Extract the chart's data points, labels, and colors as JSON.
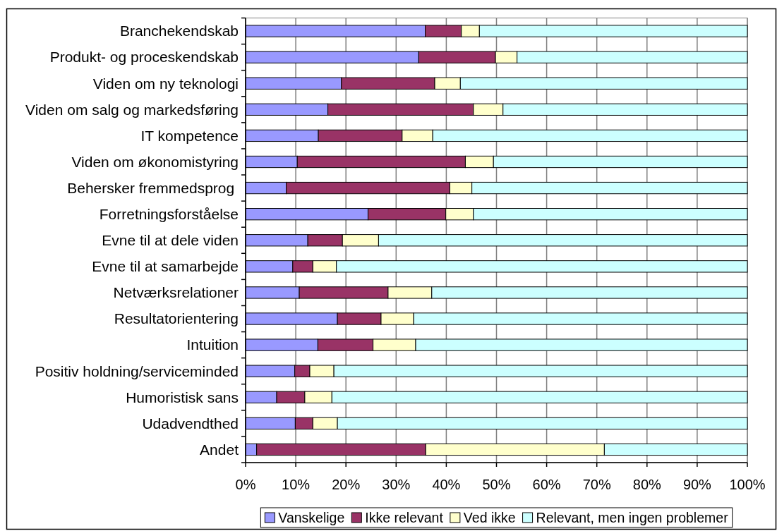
{
  "chart_data": {
    "type": "bar",
    "orientation": "horizontal",
    "stacked": true,
    "categories": [
      "Branchekendskab",
      "Produkt- og proceskendskab",
      "Viden om ny teknologi",
      "Viden om salg og markedsføring",
      "IT kompetence",
      "Viden om økonomistyring",
      "Behersker fremmedsprog ",
      "Forretningsforståelse",
      "Evne til at dele viden",
      "Evne til at samarbejde",
      "Netværksrelationer",
      "Resultatorientering",
      "Intuition",
      "Positiv holdning/serviceminded",
      "Humoristisk sans",
      "Udadvendthed",
      "Andet"
    ],
    "series": [
      {
        "name": "Vanskelige",
        "color": "#9999ff",
        "values": [
          35.8,
          34.5,
          19.1,
          16.4,
          14.5,
          10.3,
          8.1,
          24.4,
          12.4,
          9.4,
          10.7,
          18.3,
          14.4,
          9.8,
          6.2,
          9.9,
          2.2
        ]
      },
      {
        "name": "Ikke relevant",
        "color": "#993366",
        "values": [
          7.2,
          15.3,
          18.6,
          29.0,
          16.7,
          33.5,
          32.6,
          15.5,
          6.9,
          4.0,
          17.7,
          8.7,
          11.0,
          3.0,
          5.6,
          3.5,
          33.7
        ]
      },
      {
        "name": "Ved ikke",
        "color": "#ffffcc",
        "values": [
          3.6,
          4.3,
          5.1,
          5.9,
          6.1,
          5.6,
          4.4,
          5.5,
          7.2,
          4.7,
          8.7,
          6.5,
          8.5,
          4.8,
          5.4,
          4.9,
          35.6
        ]
      },
      {
        "name": "Relevant, men ingen problemer",
        "color": "#ccffff",
        "values": [
          53.4,
          45.9,
          57.2,
          48.7,
          62.7,
          50.6,
          54.9,
          54.6,
          73.5,
          81.9,
          62.9,
          66.5,
          66.1,
          82.4,
          82.8,
          81.7,
          28.5
        ]
      }
    ],
    "xlim": [
      0,
      100
    ],
    "xticks": [
      {
        "value": 0,
        "label": "0%"
      },
      {
        "value": 10,
        "label": "10%"
      },
      {
        "value": 20,
        "label": "20%"
      },
      {
        "value": 30,
        "label": "30%"
      },
      {
        "value": 40,
        "label": "40%"
      },
      {
        "value": 50,
        "label": "50%"
      },
      {
        "value": 60,
        "label": "60%"
      },
      {
        "value": 70,
        "label": "70%"
      },
      {
        "value": 80,
        "label": "80%"
      },
      {
        "value": 90,
        "label": "90%"
      },
      {
        "value": 100,
        "label": "100%"
      }
    ],
    "grid": "x",
    "legend": "bottom"
  }
}
